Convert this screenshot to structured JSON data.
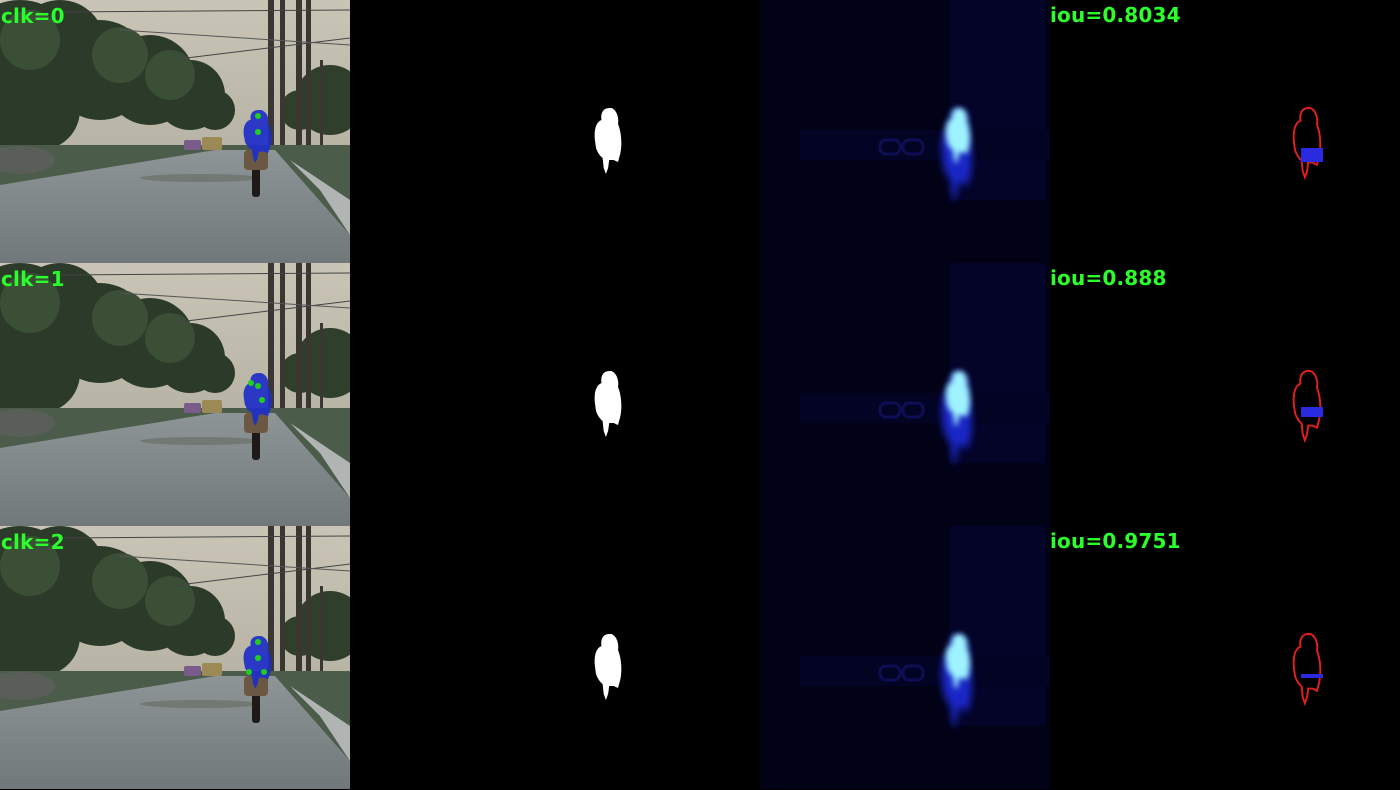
{
  "rows": [
    {
      "click_label": "clk=0",
      "iou_label": "iou=0.8034",
      "click_points": 2
    },
    {
      "click_label": "clk=1",
      "iou_label": "iou=0.888",
      "click_points": 3
    },
    {
      "click_label": "clk=2",
      "iou_label": "iou=0.9751",
      "click_points": 4
    }
  ],
  "colors": {
    "label_green": "#2bff2b",
    "click_point": "#1fd11f",
    "rider_overlay": "#1e2ec8",
    "mask_white": "#ffffff",
    "heat_core": "#9ef3ff",
    "error_outline": "#e0201c",
    "error_fill": "#2a2ae0"
  }
}
